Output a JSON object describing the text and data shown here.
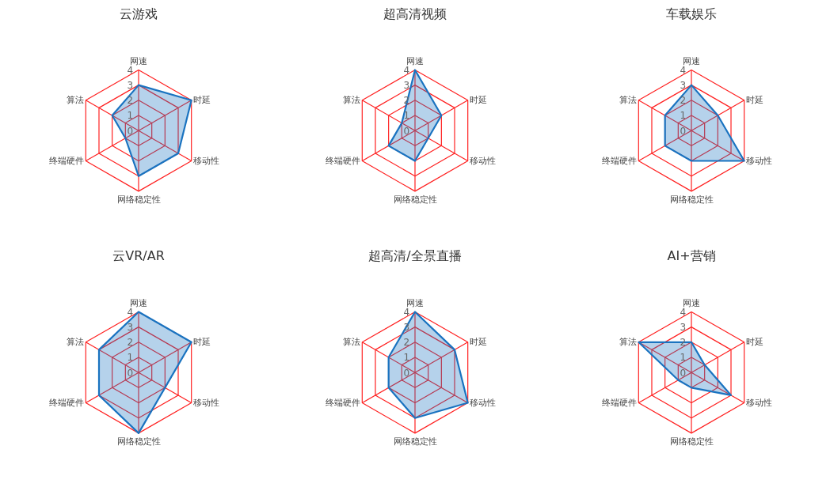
{
  "chart_data": [
    {
      "type": "radar",
      "title": "云游戏",
      "categories": [
        "网速",
        "时延",
        "移动性",
        "网络稳定性",
        "终端硬件",
        "算法"
      ],
      "ylim": [
        0,
        4
      ],
      "yticks": [
        0,
        1,
        2,
        3,
        4
      ],
      "grid": true,
      "series": [
        {
          "color": "#1a73c0",
          "values": [
            3,
            4,
            3,
            3,
            1,
            2
          ]
        }
      ]
    },
    {
      "type": "radar",
      "title": "超高清视频",
      "categories": [
        "网速",
        "时延",
        "移动性",
        "网络稳定性",
        "终端硬件",
        "算法"
      ],
      "ylim": [
        0,
        4
      ],
      "yticks": [
        0,
        1,
        2,
        3,
        4
      ],
      "grid": true,
      "series": [
        {
          "color": "#1a73c0",
          "values": [
            4,
            2,
            1,
            2,
            2,
            1
          ]
        }
      ]
    },
    {
      "type": "radar",
      "title": "车载娱乐",
      "categories": [
        "网速",
        "时延",
        "移动性",
        "网络稳定性",
        "终端硬件",
        "算法"
      ],
      "ylim": [
        0,
        4
      ],
      "yticks": [
        0,
        1,
        2,
        3,
        4
      ],
      "grid": true,
      "series": [
        {
          "color": "#1a73c0",
          "values": [
            3,
            2,
            4,
            2,
            2,
            2
          ]
        }
      ]
    },
    {
      "type": "radar",
      "title": "云VR/AR",
      "categories": [
        "网速",
        "时延",
        "移动性",
        "网络稳定性",
        "终端硬件",
        "算法"
      ],
      "ylim": [
        0,
        4
      ],
      "yticks": [
        0,
        1,
        2,
        3,
        4
      ],
      "grid": true,
      "series": [
        {
          "color": "#1a73c0",
          "values": [
            4,
            4,
            2,
            4,
            3,
            3
          ]
        }
      ]
    },
    {
      "type": "radar",
      "title": "超高清/全景直播",
      "categories": [
        "网速",
        "时延",
        "移动性",
        "网络稳定性",
        "终端硬件",
        "算法"
      ],
      "ylim": [
        0,
        4
      ],
      "yticks": [
        0,
        1,
        2,
        3,
        4
      ],
      "grid": true,
      "series": [
        {
          "color": "#1a73c0",
          "values": [
            4,
            3,
            4,
            3,
            2,
            2
          ]
        }
      ]
    },
    {
      "type": "radar",
      "title": "AI+营销",
      "categories": [
        "网速",
        "时延",
        "移动性",
        "网络稳定性",
        "终端硬件",
        "算法"
      ],
      "ylim": [
        0,
        4
      ],
      "yticks": [
        0,
        1,
        2,
        3,
        4
      ],
      "grid": true,
      "series": [
        {
          "color": "#1a73c0",
          "values": [
            2,
            1,
            3,
            1,
            1,
            4
          ]
        }
      ]
    }
  ]
}
